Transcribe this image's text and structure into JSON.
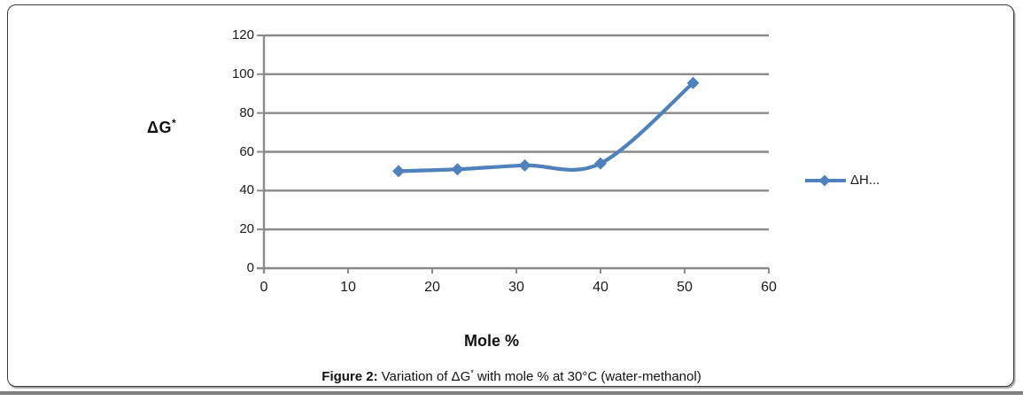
{
  "caption": {
    "prefix": "Figure 2:",
    "body": "Variation of ΔG",
    "sup": "*",
    "tail": " with mole % at 30°C (water-methanol)"
  },
  "chart_data": {
    "type": "line",
    "subtype": "scatter-smooth-markers",
    "x": [
      16,
      23,
      31,
      40,
      51
    ],
    "series": [
      {
        "name": "ΔH...",
        "values": [
          50,
          51,
          53,
          54,
          95.5
        ]
      }
    ],
    "title": "",
    "xlabel": "Mole %",
    "ylabel": "ΔG*",
    "ylabel_base": "ΔG",
    "ylabel_sup": "*",
    "legend": "ΔH...",
    "legend_position": "right",
    "xlim": [
      0,
      60
    ],
    "ylim": [
      0,
      120
    ],
    "x_ticks": [
      0,
      10,
      20,
      30,
      40,
      50,
      60
    ],
    "y_ticks": [
      0,
      20,
      40,
      60,
      80,
      100,
      120
    ],
    "grid": "horizontal",
    "marker": "diamond",
    "smooth": true
  },
  "colors": {
    "line": "#4F81BD",
    "grid": "#8A8A8A",
    "axis": "#8A8A8A",
    "text": "#1a1a1a",
    "divider": "#7F7F7F"
  }
}
